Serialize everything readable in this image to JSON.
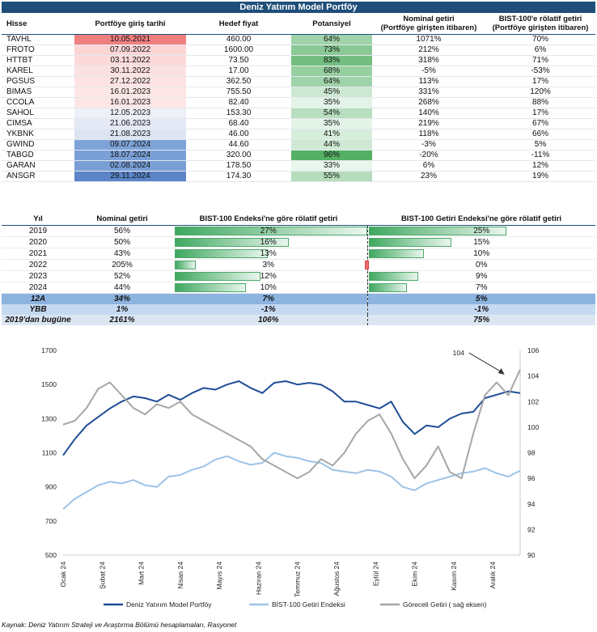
{
  "portfolio": {
    "title": "Deniz Yatırım Model Portföy",
    "headers": [
      "Hisse",
      "Portföye giriş tarihi",
      "Hedef fiyat",
      "Potansiyel",
      "Nominal getiri\n(Portföye girişten itibaren)",
      "BIST-100'e rölatif getiri\n(Portföye girişten itibaren)"
    ],
    "rows": [
      {
        "stock": "TAVHL",
        "date": "10.05.2021",
        "target": "460.00",
        "potential": "64%",
        "nominal": "1071%",
        "relative": "70%",
        "date_color": "#f08080",
        "pot_value": 64
      },
      {
        "stock": "FROTO",
        "date": "07.09.2022",
        "target": "1600.00",
        "potential": "73%",
        "nominal": "212%",
        "relative": "6%",
        "date_color": "#fcd5d5",
        "pot_value": 73
      },
      {
        "stock": "HTTBT",
        "date": "03.11.2022",
        "target": "73.50",
        "potential": "83%",
        "nominal": "318%",
        "relative": "71%",
        "date_color": "#fcdada",
        "pot_value": 83
      },
      {
        "stock": "KAREL",
        "date": "30.11.2022",
        "target": "17.00",
        "potential": "68%",
        "nominal": "-5%",
        "relative": "-53%",
        "date_color": "#fde0e0",
        "pot_value": 68
      },
      {
        "stock": "PGSUS",
        "date": "27.12.2022",
        "target": "362.50",
        "potential": "64%",
        "nominal": "113%",
        "relative": "17%",
        "date_color": "#fde3e3",
        "pot_value": 64
      },
      {
        "stock": "BIMAS",
        "date": "16.01.2023",
        "target": "755.50",
        "potential": "45%",
        "nominal": "331%",
        "relative": "120%",
        "date_color": "#fde6e6",
        "pot_value": 45
      },
      {
        "stock": "CCOLA",
        "date": "16.01.2023",
        "target": "82.40",
        "potential": "35%",
        "nominal": "268%",
        "relative": "88%",
        "date_color": "#fde6e6",
        "pot_value": 35
      },
      {
        "stock": "SAHOL",
        "date": "12.05.2023",
        "target": "153.30",
        "potential": "54%",
        "nominal": "140%",
        "relative": "17%",
        "date_color": "#eef0f8",
        "pot_value": 54
      },
      {
        "stock": "CIMSA",
        "date": "21.06.2023",
        "target": "68.40",
        "potential": "35%",
        "nominal": "219%",
        "relative": "67%",
        "date_color": "#e4e9f5",
        "pot_value": 35
      },
      {
        "stock": "YKBNK",
        "date": "21.08.2023",
        "target": "46.00",
        "potential": "41%",
        "nominal": "118%",
        "relative": "66%",
        "date_color": "#dde4f2",
        "pot_value": 41
      },
      {
        "stock": "GWIND",
        "date": "09.07.2024",
        "target": "44.60",
        "potential": "44%",
        "nominal": "-3%",
        "relative": "5%",
        "date_color": "#7ea3d8",
        "pot_value": 44
      },
      {
        "stock": "TABGD",
        "date": "18.07.2024",
        "target": "320.00",
        "potential": "96%",
        "nominal": "-20%",
        "relative": "-11%",
        "date_color": "#7aa0d6",
        "pot_value": 96
      },
      {
        "stock": "GARAN",
        "date": "02.08.2024",
        "target": "178.50",
        "potential": "33%",
        "nominal": "6%",
        "relative": "12%",
        "date_color": "#789ed5",
        "pot_value": 33
      },
      {
        "stock": "ANSGR",
        "date": "29.11.2024",
        "target": "174.30",
        "potential": "55%",
        "nominal": "23%",
        "relative": "19%",
        "date_color": "#5b85c8",
        "pot_value": 55
      }
    ]
  },
  "yearly": {
    "headers": [
      "Yıl",
      "Nominal getiri",
      "BIST-100 Endeksi'ne göre rölatif getiri",
      "BIST-100 Getiri Endeksi'ne göre rölatif getiri"
    ],
    "rows": [
      {
        "year": "2019",
        "nominal": "56%",
        "rel_bist": "27%",
        "rel_bist_v": 27,
        "rel_ret": "25%",
        "rel_ret_v": 25
      },
      {
        "year": "2020",
        "nominal": "50%",
        "rel_bist": "16%",
        "rel_bist_v": 16,
        "rel_ret": "15%",
        "rel_ret_v": 15
      },
      {
        "year": "2021",
        "nominal": "43%",
        "rel_bist": "13%",
        "rel_bist_v": 13,
        "rel_ret": "10%",
        "rel_ret_v": 10
      },
      {
        "year": "2022",
        "nominal": "205%",
        "rel_bist": "3%",
        "rel_bist_v": 3,
        "rel_ret": "0%",
        "rel_ret_v": -0.4
      },
      {
        "year": "2023",
        "nominal": "52%",
        "rel_bist": "12%",
        "rel_bist_v": 12,
        "rel_ret": "9%",
        "rel_ret_v": 9
      },
      {
        "year": "2024",
        "nominal": "44%",
        "rel_bist": "10%",
        "rel_bist_v": 10,
        "rel_ret": "7%",
        "rel_ret_v": 7
      }
    ],
    "summary": [
      {
        "label": "12A",
        "nominal": "34%",
        "rel_bist": "7%",
        "rel_ret": "5%"
      },
      {
        "label": "YBB",
        "nominal": "1%",
        "rel_bist": "-1%",
        "rel_ret": "-1%"
      },
      {
        "label": "2019'dan bugüne",
        "nominal": "2161%",
        "rel_bist": "106%",
        "rel_ret": "75%"
      }
    ]
  },
  "chart_data": {
    "type": "line",
    "title": "",
    "y_left": {
      "min": 500,
      "max": 1700,
      "ticks": [
        500,
        700,
        900,
        1100,
        1300,
        1500,
        1700
      ]
    },
    "y_right": {
      "min": 90,
      "max": 106,
      "ticks": [
        90,
        92,
        94,
        96,
        98,
        100,
        102,
        104,
        106
      ]
    },
    "x_labels": [
      "Ocak 24",
      "Şubat 24",
      "Mart 24",
      "Nisan 24",
      "Mayıs 24",
      "Haziran 24",
      "Temmuz 24",
      "Ağustos 24",
      "Eylül 24",
      "Ekim 24",
      "Kasım 24",
      "Aralık 24"
    ],
    "annotation": {
      "text": "104",
      "x": 11.3,
      "y": 104.1
    },
    "series": [
      {
        "name": "Deniz Yatırım Model Portföy",
        "axis": "left",
        "color": "#1f4e96",
        "x": [
          0,
          0.3,
          0.6,
          0.9,
          1.2,
          1.5,
          1.8,
          2.1,
          2.4,
          2.7,
          3.0,
          3.3,
          3.6,
          3.9,
          4.2,
          4.5,
          4.8,
          5.1,
          5.4,
          5.7,
          6.0,
          6.3,
          6.6,
          6.9,
          7.2,
          7.5,
          7.8,
          8.1,
          8.4,
          8.7,
          9.0,
          9.3,
          9.6,
          9.9,
          10.2,
          10.5,
          10.8,
          11.1,
          11.4,
          11.7
        ],
        "y": [
          1085,
          1180,
          1260,
          1310,
          1360,
          1400,
          1430,
          1420,
          1400,
          1440,
          1410,
          1450,
          1480,
          1470,
          1500,
          1520,
          1480,
          1450,
          1510,
          1520,
          1500,
          1510,
          1500,
          1460,
          1400,
          1400,
          1380,
          1360,
          1400,
          1280,
          1210,
          1260,
          1250,
          1300,
          1330,
          1340,
          1420,
          1440,
          1460,
          1450
        ]
      },
      {
        "name": "BİST-100 Getiri Endeksi",
        "axis": "left",
        "color": "#9dc3e6",
        "x": [
          0,
          0.3,
          0.6,
          0.9,
          1.2,
          1.5,
          1.8,
          2.1,
          2.4,
          2.7,
          3.0,
          3.3,
          3.6,
          3.9,
          4.2,
          4.5,
          4.8,
          5.1,
          5.4,
          5.7,
          6.0,
          6.3,
          6.6,
          6.9,
          7.2,
          7.5,
          7.8,
          8.1,
          8.4,
          8.7,
          9.0,
          9.3,
          9.6,
          9.9,
          10.2,
          10.5,
          10.8,
          11.1,
          11.4,
          11.7
        ],
        "y": [
          770,
          830,
          870,
          910,
          930,
          920,
          940,
          910,
          900,
          960,
          970,
          1000,
          1020,
          1060,
          1080,
          1050,
          1030,
          1040,
          1100,
          1080,
          1070,
          1050,
          1040,
          1000,
          990,
          980,
          1000,
          990,
          960,
          900,
          880,
          920,
          940,
          960,
          980,
          990,
          1010,
          980,
          960,
          995
        ]
      },
      {
        "name": "Göreceli Getiri ( sağ eksen)",
        "axis": "right",
        "color": "#a6a6a6",
        "x": [
          0,
          0.3,
          0.6,
          0.9,
          1.2,
          1.5,
          1.8,
          2.1,
          2.4,
          2.7,
          3.0,
          3.3,
          3.6,
          3.9,
          4.2,
          4.5,
          4.8,
          5.1,
          5.4,
          5.7,
          6.0,
          6.3,
          6.6,
          6.9,
          7.2,
          7.5,
          7.8,
          8.1,
          8.4,
          8.7,
          9.0,
          9.3,
          9.6,
          9.9,
          10.2,
          10.5,
          10.8,
          11.1,
          11.4,
          11.7
        ],
        "y": [
          100.2,
          100.5,
          101.5,
          103.0,
          103.5,
          102.5,
          101.5,
          101.0,
          101.8,
          101.5,
          102.0,
          101.0,
          100.5,
          100.0,
          99.5,
          99.0,
          98.5,
          97.5,
          97.0,
          96.5,
          96.0,
          96.5,
          97.5,
          97.0,
          98.0,
          99.5,
          100.5,
          101.0,
          99.5,
          97.5,
          96.0,
          97.0,
          98.5,
          96.5,
          96.0,
          99.5,
          102.5,
          103.5,
          102.5,
          104.5
        ]
      }
    ]
  },
  "source": "Kaynak: Deniz Yatırım Strateji ve Araştırma Bölümü hesaplamaları, Rasyonet"
}
